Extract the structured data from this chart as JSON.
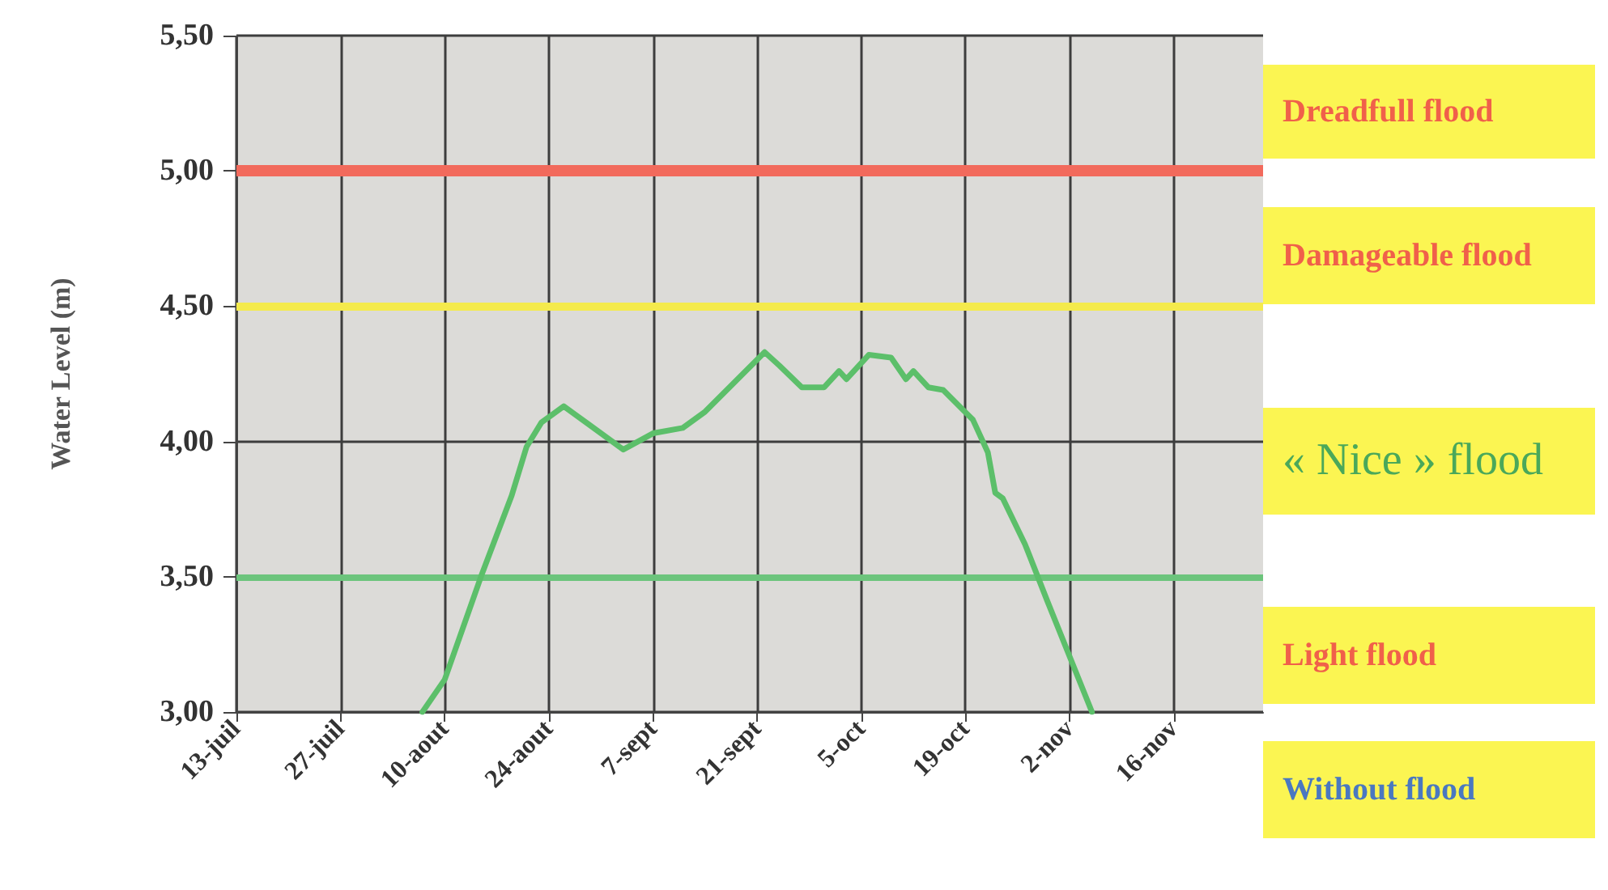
{
  "chart_data": {
    "type": "line",
    "ylabel": "Water Level (m)",
    "x": [
      "--08-07",
      "--08-10",
      "--08-15",
      "--08-19",
      "--08-21",
      "--08-23",
      "--08-26",
      "--08-29",
      "--09-03",
      "--09-07",
      "--09-11",
      "--09-14",
      "--09-18",
      "--09-22",
      "--09-24",
      "--09-27",
      "--09-30",
      "--10-02",
      "--10-03",
      "--10-06",
      "--10-09",
      "--10-11",
      "--10-12",
      "--10-14",
      "--10-16",
      "--10-20",
      "--10-22",
      "--10-23",
      "--10-24",
      "--10-27",
      "--10-30",
      "--11-05"
    ],
    "series": [
      {
        "color": "#5cbf6a",
        "values": [
          3.0,
          3.12,
          3.51,
          3.8,
          3.98,
          4.07,
          4.13,
          4.07,
          3.97,
          4.03,
          4.05,
          4.11,
          4.22,
          4.33,
          4.28,
          4.2,
          4.2,
          4.26,
          4.23,
          4.32,
          4.31,
          4.23,
          4.26,
          4.2,
          4.19,
          4.08,
          3.96,
          3.81,
          3.79,
          3.62,
          3.41,
          3.0
        ]
      }
    ],
    "xlim": [
      "--07-13",
      "--11-28"
    ],
    "xticks": [
      {
        "value": "--07-13",
        "label": "13-juil"
      },
      {
        "value": "--07-27",
        "label": "27-juil"
      },
      {
        "value": "--08-10",
        "label": "10-aout"
      },
      {
        "value": "--08-24",
        "label": "24-aout"
      },
      {
        "value": "--09-07",
        "label": "7-sept"
      },
      {
        "value": "--09-21",
        "label": "21-sept"
      },
      {
        "value": "--10-05",
        "label": "5-oct"
      },
      {
        "value": "--10-19",
        "label": "19-oct"
      },
      {
        "value": "--11-02",
        "label": "2-nov"
      },
      {
        "value": "--11-16",
        "label": "16-nov"
      }
    ],
    "ylim": [
      3.0,
      5.5
    ],
    "yticks": [
      {
        "value": 3.0,
        "label": "3,00"
      },
      {
        "value": 3.5,
        "label": "3,50"
      },
      {
        "value": 4.0,
        "label": "4,00"
      },
      {
        "value": 4.5,
        "label": "4,50"
      },
      {
        "value": 5.0,
        "label": "5,00"
      },
      {
        "value": 5.5,
        "label": "5,50"
      }
    ],
    "ref_lines": [
      {
        "axis": "y",
        "value": 5.0,
        "color": "#f26a5c"
      },
      {
        "axis": "y",
        "value": 4.5,
        "color": "#f4ea4c"
      },
      {
        "axis": "y",
        "value": 3.5,
        "color": "#6cc47c"
      }
    ],
    "annotations": [
      "Dreadfull flood",
      "Damageable flood",
      "« Nice » flood",
      "Light flood",
      "Without flood"
    ],
    "grid": true,
    "marker": "none",
    "line_style": "solid"
  }
}
